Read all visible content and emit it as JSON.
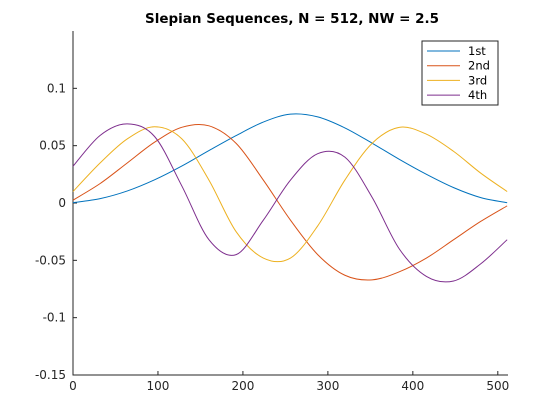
{
  "chart_data": {
    "type": "line",
    "title": "Slepian Sequences, N = 512, NW = 2.5",
    "xlabel": "",
    "ylabel": "",
    "xlim": [
      0,
      512
    ],
    "ylim": [
      -0.15,
      0.15
    ],
    "x_ticks": [
      0,
      100,
      200,
      300,
      400,
      500
    ],
    "x_tick_labels": [
      "0",
      "100",
      "200",
      "300",
      "400",
      "500"
    ],
    "y_ticks": [
      -0.15,
      -0.1,
      -0.05,
      0,
      0.05,
      0.1
    ],
    "y_tick_labels": [
      "-0.15",
      "-0.1",
      "-0.05",
      "0",
      "0.05",
      "0.1"
    ],
    "grid": false,
    "legend_position": "top-right",
    "x": [
      0,
      32,
      64,
      96,
      128,
      160,
      192,
      224,
      256,
      288,
      320,
      352,
      384,
      416,
      448,
      480,
      511
    ],
    "series": [
      {
        "name": "1st",
        "color": "#0072BD",
        "values": [
          0.0003,
          0.0038,
          0.0105,
          0.0202,
          0.0322,
          0.0457,
          0.0588,
          0.0706,
          0.0775,
          0.0751,
          0.0655,
          0.0522,
          0.0381,
          0.025,
          0.0134,
          0.0047,
          0.0003
        ]
      },
      {
        "name": "2nd",
        "color": "#D95319",
        "values": [
          0.0025,
          0.017,
          0.035,
          0.053,
          0.066,
          0.0673,
          0.052,
          0.02,
          -0.015,
          -0.045,
          -0.063,
          -0.067,
          -0.06,
          -0.048,
          -0.032,
          -0.016,
          -0.0025
        ]
      },
      {
        "name": "3rd",
        "color": "#EDB120",
        "values": [
          0.01,
          0.035,
          0.056,
          0.0665,
          0.056,
          0.02,
          -0.025,
          -0.048,
          -0.048,
          -0.02,
          0.02,
          0.052,
          0.066,
          0.06,
          0.045,
          0.026,
          0.01
        ]
      },
      {
        "name": "4th",
        "color": "#7E2F8E",
        "values": [
          0.032,
          0.059,
          0.069,
          0.058,
          0.015,
          -0.032,
          -0.045,
          -0.015,
          0.02,
          0.043,
          0.04,
          0.005,
          -0.04,
          -0.064,
          -0.068,
          -0.053,
          -0.032
        ]
      }
    ]
  }
}
